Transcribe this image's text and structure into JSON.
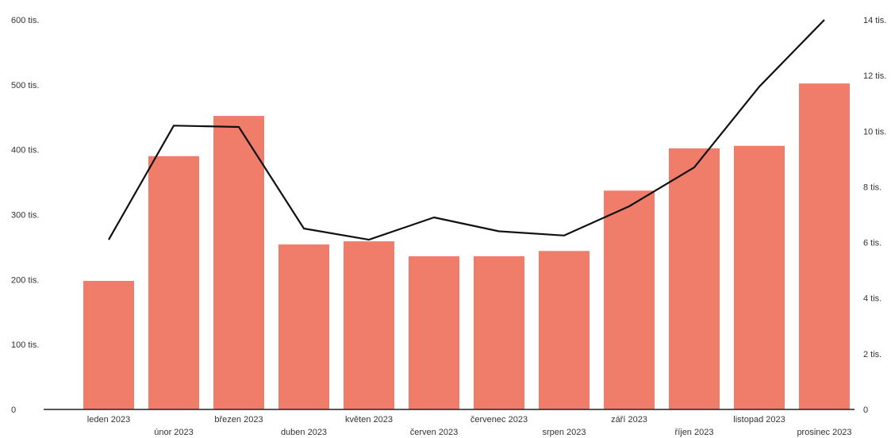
{
  "chart_data": {
    "type": "bar",
    "categories": [
      "leden 2023",
      "únor 2023",
      "březen 2023",
      "duben 2023",
      "květen 2023",
      "červen 2023",
      "červenec 2023",
      "srpen 2023",
      "září 2023",
      "říjen 2023",
      "listopad 2023",
      "prosinec 2023"
    ],
    "series": [
      {
        "type": "bar",
        "axis": "left",
        "color": "#f07c6a",
        "values": [
          198000,
          390000,
          452000,
          254000,
          259000,
          236000,
          236000,
          244000,
          337000,
          402000,
          406000,
          502000
        ]
      },
      {
        "type": "line",
        "axis": "right",
        "color": "#111111",
        "values": [
          6.1,
          10.2,
          10.15,
          6.5,
          6.1,
          6.9,
          6.4,
          6.25,
          7.3,
          8.7,
          11.6,
          14.0
        ]
      }
    ],
    "y_left": {
      "ylim": [
        0,
        600000
      ],
      "ticks": [
        0,
        100000,
        200000,
        300000,
        400000,
        500000,
        600000
      ],
      "tick_labels": [
        "0",
        "100 tis.",
        "200 tis.",
        "300 tis.",
        "400 tis.",
        "500 tis.",
        "600 tis."
      ]
    },
    "y_right": {
      "ylim": [
        0,
        14
      ],
      "ticks": [
        0,
        2,
        4,
        6,
        8,
        10,
        12,
        14
      ],
      "tick_labels": [
        "0",
        "2 tis.",
        "4 tis.",
        "6 tis.",
        "8 tis.",
        "10 tis.",
        "12 tis.",
        "14 tis."
      ]
    },
    "grid": false,
    "legend": "none"
  }
}
